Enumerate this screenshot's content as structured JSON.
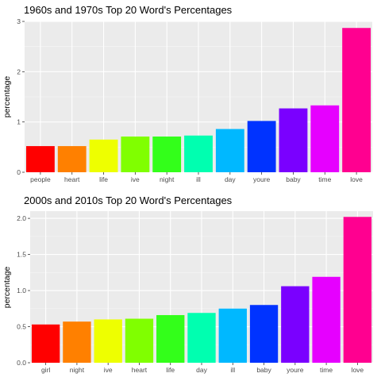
{
  "chart_data": [
    {
      "type": "bar",
      "title": "1960s and 1970s Top 20 Word's Percentages",
      "xlabel": "",
      "ylabel": "percentage",
      "categories": [
        "people",
        "heart",
        "life",
        "ive",
        "night",
        "ill",
        "day",
        "youre",
        "baby",
        "time",
        "love"
      ],
      "values": [
        0.52,
        0.52,
        0.65,
        0.71,
        0.71,
        0.73,
        0.86,
        1.02,
        1.27,
        1.33,
        2.87
      ],
      "colors": [
        "#FF0000",
        "#FF8000",
        "#EEFF00",
        "#80FF00",
        "#33FF1A",
        "#00FFB0",
        "#00B8FF",
        "#0033FF",
        "#7A00FF",
        "#E600FF",
        "#FF0090"
      ],
      "ylim": [
        0,
        3
      ],
      "yticks": [
        0,
        1,
        2,
        3
      ],
      "grid": true,
      "legend": "none"
    },
    {
      "type": "bar",
      "title": "2000s and 2010s Top 20 Word's Percentages",
      "xlabel": "",
      "ylabel": "percentage",
      "categories": [
        "girl",
        "night",
        "ive",
        "heart",
        "life",
        "day",
        "ill",
        "baby",
        "youre",
        "time",
        "love"
      ],
      "values": [
        0.53,
        0.57,
        0.6,
        0.61,
        0.66,
        0.69,
        0.75,
        0.8,
        1.06,
        1.19,
        2.02
      ],
      "colors": [
        "#FF0000",
        "#FF8000",
        "#EEFF00",
        "#80FF00",
        "#33FF1A",
        "#00FFB0",
        "#00B8FF",
        "#0033FF",
        "#7A00FF",
        "#E600FF",
        "#FF0090"
      ],
      "ylim": [
        0,
        2.1
      ],
      "yticks": [
        0.0,
        0.5,
        1.0,
        1.5,
        2.0
      ],
      "ytick_labels": [
        "0.0",
        "0.5",
        "1.0",
        "1.5",
        "2.0"
      ],
      "grid": true,
      "legend": "none"
    }
  ]
}
